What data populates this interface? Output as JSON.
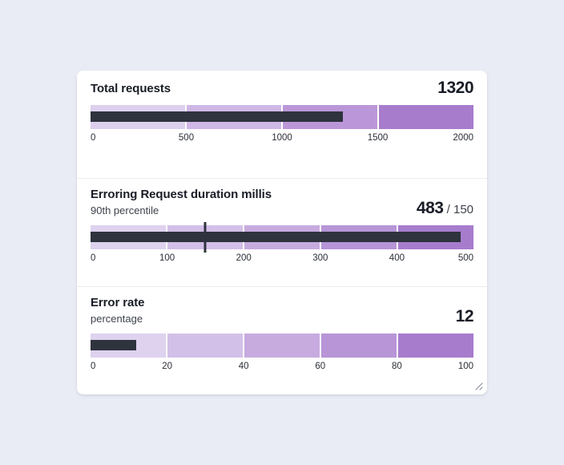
{
  "colors": {
    "page_bg": "#e9ecf5",
    "card_bg": "#ffffff",
    "divider": "#e9ecf0",
    "title": "#191d26",
    "subtitle": "#3d424c",
    "axis": "#2a2e36",
    "measure": "#2e333e",
    "target_marker": "#2e333e",
    "grip": "#8d939e"
  },
  "resize_handle": {
    "icon": "resize-grip-icon"
  },
  "chart_data": [
    {
      "type": "bullet",
      "id": "total-requests",
      "title": "Total requests",
      "subtitle": "",
      "value": 1320,
      "value_label": "1320",
      "target": null,
      "target_label": "",
      "xlim": [
        0,
        2000
      ],
      "tick_labels": [
        "0",
        "500",
        "1000",
        "1500",
        "2000"
      ],
      "bands": [
        [
          0,
          500
        ],
        [
          500,
          1000
        ],
        [
          1000,
          1500
        ],
        [
          1500,
          2000
        ]
      ],
      "band_colors": [
        "#ddd0ee",
        "#cfb7e6",
        "#bb97d9",
        "#a77ccd"
      ],
      "legend": "none",
      "grid": false
    },
    {
      "type": "bullet",
      "id": "erroring-request-duration-millis",
      "title": "Erroring Request duration millis",
      "subtitle": "90th percentile",
      "value": 483,
      "value_label": "483",
      "target": 150,
      "target_label": "150",
      "xlim": [
        0,
        500
      ],
      "tick_labels": [
        "0",
        "100",
        "200",
        "300",
        "400",
        "500"
      ],
      "bands": [
        [
          0,
          100
        ],
        [
          100,
          200
        ],
        [
          200,
          300
        ],
        [
          300,
          400
        ],
        [
          400,
          500
        ]
      ],
      "band_colors": [
        "#ded2ef",
        "#d3c0e8",
        "#c7abdf",
        "#b795d7",
        "#a77ccd"
      ],
      "legend": "none",
      "grid": false
    },
    {
      "type": "bullet",
      "id": "error-rate",
      "title": "Error rate",
      "subtitle": "percentage",
      "value": 12,
      "value_label": "12",
      "target": null,
      "target_label": "",
      "xlim": [
        0,
        100
      ],
      "tick_labels": [
        "0",
        "20",
        "40",
        "60",
        "80",
        "100"
      ],
      "bands": [
        [
          0,
          20
        ],
        [
          20,
          40
        ],
        [
          40,
          60
        ],
        [
          60,
          80
        ],
        [
          80,
          100
        ]
      ],
      "band_colors": [
        "#ded2ef",
        "#d3c0e8",
        "#c7abdf",
        "#b795d7",
        "#a77ccd"
      ],
      "legend": "none",
      "grid": false
    }
  ]
}
